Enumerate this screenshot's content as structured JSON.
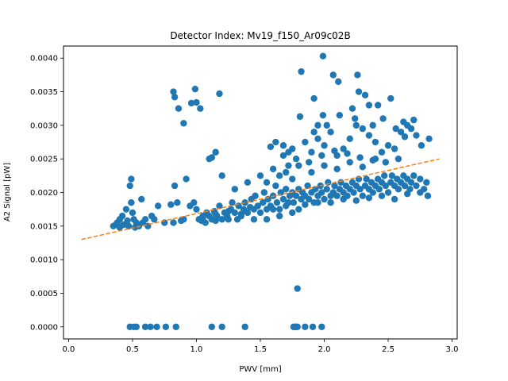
{
  "chart_data": {
    "type": "scatter",
    "title": "Detector Index: Mv19_f150_Ar09c02B",
    "xlabel": "PWV [mm]",
    "ylabel": "A2 Signal [pW]",
    "xlim": [
      -0.04,
      3.04
    ],
    "ylim": [
      -0.00018,
      0.00418
    ],
    "xticks": [
      0.0,
      0.5,
      1.0,
      1.5,
      2.0,
      2.5,
      3.0
    ],
    "xtick_labels": [
      "0.0",
      "0.5",
      "1.0",
      "1.5",
      "2.0",
      "2.5",
      "3.0"
    ],
    "yticks": [
      0.0,
      0.0005,
      0.001,
      0.0015,
      0.002,
      0.0025,
      0.003,
      0.0035,
      0.004
    ],
    "ytick_labels": [
      "0.0000",
      "0.0005",
      "0.0010",
      "0.0015",
      "0.0020",
      "0.0025",
      "0.0030",
      "0.0035",
      "0.0040"
    ],
    "grid": false,
    "legend": "none",
    "colors": {
      "points": "#1f77b4",
      "fit": "#ff7f0e"
    },
    "fit_line": {
      "x": [
        0.1,
        2.9
      ],
      "y": [
        0.0013,
        0.0025
      ],
      "style": "dashed"
    },
    "points": [
      [
        0.35,
        0.0015
      ],
      [
        0.37,
        0.00152
      ],
      [
        0.38,
        0.00155
      ],
      [
        0.4,
        0.0016
      ],
      [
        0.4,
        0.00148
      ],
      [
        0.42,
        0.00165
      ],
      [
        0.43,
        0.00152
      ],
      [
        0.45,
        0.00175
      ],
      [
        0.46,
        0.00158
      ],
      [
        0.47,
        0.0015
      ],
      [
        0.48,
        0.0021
      ],
      [
        0.49,
        0.0022
      ],
      [
        0.49,
        0.00185
      ],
      [
        0.5,
        0.0017
      ],
      [
        0.51,
        0.0016
      ],
      [
        0.52,
        0.00148
      ],
      [
        0.53,
        0.00155
      ],
      [
        0.55,
        0.0015
      ],
      [
        0.57,
        0.0019
      ],
      [
        0.58,
        0.00155
      ],
      [
        0.6,
        0.0016
      ],
      [
        0.62,
        0.0015
      ],
      [
        0.65,
        0.00165
      ],
      [
        0.67,
        0.0016
      ],
      [
        0.7,
        0.0018
      ],
      [
        0.75,
        0.00155
      ],
      [
        0.8,
        0.00182
      ],
      [
        0.82,
        0.00155
      ],
      [
        0.83,
        0.0021
      ],
      [
        0.85,
        0.00185
      ],
      [
        0.88,
        0.00158
      ],
      [
        0.9,
        0.0016
      ],
      [
        0.92,
        0.0022
      ],
      [
        0.95,
        0.0018
      ],
      [
        0.98,
        0.00185
      ],
      [
        1.0,
        0.00175
      ],
      [
        1.02,
        0.0016
      ],
      [
        1.04,
        0.00158
      ],
      [
        1.05,
        0.00162
      ],
      [
        1.07,
        0.00155
      ],
      [
        1.08,
        0.0017
      ],
      [
        1.1,
        0.00165
      ],
      [
        1.12,
        0.0016
      ],
      [
        1.14,
        0.00172
      ],
      [
        1.15,
        0.00158
      ],
      [
        1.16,
        0.00165
      ],
      [
        1.18,
        0.0018
      ],
      [
        1.2,
        0.0016
      ],
      [
        1.22,
        0.0017
      ],
      [
        1.24,
        0.00165
      ],
      [
        1.25,
        0.0016
      ],
      [
        1.27,
        0.00175
      ],
      [
        1.28,
        0.00185
      ],
      [
        1.3,
        0.0017
      ],
      [
        1.32,
        0.0016
      ],
      [
        1.33,
        0.0018
      ],
      [
        1.35,
        0.00168
      ],
      [
        1.37,
        0.00175
      ],
      [
        1.38,
        0.00185
      ],
      [
        1.4,
        0.0017
      ],
      [
        1.42,
        0.00178
      ],
      [
        1.43,
        0.0019
      ],
      [
        1.45,
        0.00175
      ],
      [
        1.46,
        0.00195
      ],
      [
        1.48,
        0.0018
      ],
      [
        1.5,
        0.0017
      ],
      [
        1.52,
        0.00185
      ],
      [
        1.53,
        0.002
      ],
      [
        1.55,
        0.00175
      ],
      [
        1.56,
        0.0019
      ],
      [
        1.58,
        0.0018
      ],
      [
        1.6,
        0.00195
      ],
      [
        1.62,
        0.0021
      ],
      [
        1.63,
        0.00185
      ],
      [
        1.65,
        0.00175
      ],
      [
        1.66,
        0.002
      ],
      [
        1.68,
        0.0019
      ],
      [
        1.7,
        0.00205
      ],
      [
        1.72,
        0.00185
      ],
      [
        1.73,
        0.00195
      ],
      [
        1.75,
        0.002
      ],
      [
        1.76,
        0.00185
      ],
      [
        1.78,
        0.00195
      ],
      [
        1.8,
        0.00205
      ],
      [
        1.82,
        0.0019
      ],
      [
        1.83,
        0.002
      ],
      [
        1.85,
        0.00195
      ],
      [
        1.87,
        0.0021
      ],
      [
        1.88,
        0.0019
      ],
      [
        1.9,
        0.002
      ],
      [
        1.92,
        0.00185
      ],
      [
        1.93,
        0.00205
      ],
      [
        1.95,
        0.00195
      ],
      [
        1.97,
        0.0021
      ],
      [
        1.98,
        0.002
      ],
      [
        2.0,
        0.0019
      ],
      [
        2.02,
        0.00205
      ],
      [
        2.03,
        0.00215
      ],
      [
        2.05,
        0.00195
      ],
      [
        2.07,
        0.002
      ],
      [
        2.08,
        0.0021
      ],
      [
        2.1,
        0.00195
      ],
      [
        2.12,
        0.00205
      ],
      [
        2.13,
        0.00215
      ],
      [
        2.15,
        0.002
      ],
      [
        2.17,
        0.0021
      ],
      [
        2.18,
        0.00195
      ],
      [
        2.2,
        0.00205
      ],
      [
        2.22,
        0.00215
      ],
      [
        2.23,
        0.002
      ],
      [
        2.25,
        0.0021
      ],
      [
        2.27,
        0.0022
      ],
      [
        2.28,
        0.00205
      ],
      [
        2.3,
        0.00195
      ],
      [
        2.32,
        0.0021
      ],
      [
        2.33,
        0.0022
      ],
      [
        2.35,
        0.00205
      ],
      [
        2.37,
        0.00215
      ],
      [
        2.38,
        0.002
      ],
      [
        2.4,
        0.0021
      ],
      [
        2.42,
        0.0022
      ],
      [
        2.43,
        0.00205
      ],
      [
        2.45,
        0.00215
      ],
      [
        2.47,
        0.00225
      ],
      [
        2.48,
        0.0021
      ],
      [
        2.5,
        0.002
      ],
      [
        2.52,
        0.00215
      ],
      [
        2.53,
        0.00225
      ],
      [
        2.55,
        0.0021
      ],
      [
        2.57,
        0.0022
      ],
      [
        2.58,
        0.00205
      ],
      [
        2.6,
        0.00215
      ],
      [
        2.62,
        0.00225
      ],
      [
        2.63,
        0.0021
      ],
      [
        2.65,
        0.0022
      ],
      [
        2.67,
        0.00205
      ],
      [
        2.68,
        0.00215
      ],
      [
        2.7,
        0.00225
      ],
      [
        2.72,
        0.0021
      ],
      [
        2.75,
        0.0022
      ],
      [
        2.78,
        0.00205
      ],
      [
        2.8,
        0.00215
      ],
      [
        2.81,
        0.00195
      ],
      [
        1.55,
        0.0016
      ],
      [
        1.6,
        0.00175
      ],
      [
        1.65,
        0.00165
      ],
      [
        1.7,
        0.0018
      ],
      [
        1.75,
        0.0017
      ],
      [
        1.8,
        0.00175
      ],
      [
        1.45,
        0.0016
      ],
      [
        1.35,
        0.00165
      ],
      [
        1.25,
        0.00172
      ],
      [
        1.15,
        0.00168
      ],
      [
        1.05,
        0.00165
      ],
      [
        2.05,
        0.00185
      ],
      [
        2.15,
        0.0019
      ],
      [
        2.25,
        0.00188
      ],
      [
        2.35,
        0.00192
      ],
      [
        2.45,
        0.00195
      ],
      [
        2.55,
        0.0019
      ],
      [
        2.65,
        0.00198
      ],
      [
        2.75,
        0.002
      ],
      [
        1.95,
        0.00185
      ],
      [
        1.85,
        0.00182
      ],
      [
        1.9,
        0.0023
      ],
      [
        2.0,
        0.0024
      ],
      [
        2.1,
        0.00235
      ],
      [
        2.2,
        0.00245
      ],
      [
        2.3,
        0.00238
      ],
      [
        2.4,
        0.0025
      ],
      [
        1.7,
        0.0023
      ],
      [
        1.75,
        0.0022
      ],
      [
        1.8,
        0.0024
      ],
      [
        1.65,
        0.00225
      ],
      [
        1.6,
        0.00235
      ],
      [
        1.55,
        0.00215
      ],
      [
        1.5,
        0.00225
      ],
      [
        1.4,
        0.00215
      ],
      [
        1.3,
        0.00205
      ],
      [
        1.2,
        0.00225
      ],
      [
        1.9,
        0.0026
      ],
      [
        1.95,
        0.0028
      ],
      [
        2.0,
        0.0027
      ],
      [
        2.05,
        0.0029
      ],
      [
        2.1,
        0.00255
      ],
      [
        2.15,
        0.00265
      ],
      [
        2.2,
        0.0028
      ],
      [
        2.25,
        0.003
      ],
      [
        2.3,
        0.00295
      ],
      [
        2.35,
        0.00285
      ],
      [
        2.4,
        0.00275
      ],
      [
        2.45,
        0.0026
      ],
      [
        2.5,
        0.0027
      ],
      [
        2.55,
        0.00265
      ],
      [
        2.6,
        0.0029
      ],
      [
        2.62,
        0.00305
      ],
      [
        2.65,
        0.003
      ],
      [
        2.68,
        0.00295
      ],
      [
        2.7,
        0.00308
      ],
      [
        2.72,
        0.00285
      ],
      [
        2.76,
        0.0027
      ],
      [
        2.82,
        0.0028
      ],
      [
        2.58,
        0.0025
      ],
      [
        2.48,
        0.00245
      ],
      [
        2.38,
        0.00248
      ],
      [
        2.28,
        0.00252
      ],
      [
        2.18,
        0.00258
      ],
      [
        2.08,
        0.00262
      ],
      [
        1.98,
        0.00255
      ],
      [
        1.88,
        0.00245
      ],
      [
        1.78,
        0.0025
      ],
      [
        1.72,
        0.0026
      ],
      [
        1.68,
        0.00255
      ],
      [
        1.62,
        0.00275
      ],
      [
        1.58,
        0.00268
      ],
      [
        1.75,
        0.00265
      ],
      [
        1.85,
        0.00275
      ],
      [
        1.92,
        0.0029
      ],
      [
        2.02,
        0.003
      ],
      [
        2.12,
        0.00315
      ],
      [
        2.22,
        0.00325
      ],
      [
        2.27,
        0.0035
      ],
      [
        2.32,
        0.00345
      ],
      [
        2.42,
        0.0033
      ],
      [
        2.52,
        0.0034
      ],
      [
        2.26,
        0.00375
      ],
      [
        2.11,
        0.00365
      ],
      [
        2.07,
        0.00375
      ],
      [
        1.99,
        0.00403
      ],
      [
        1.82,
        0.0038
      ],
      [
        1.81,
        0.00313
      ],
      [
        1.99,
        0.00315
      ],
      [
        1.95,
        0.003
      ],
      [
        1.92,
        0.0034
      ],
      [
        2.35,
        0.0033
      ],
      [
        2.24,
        0.0031
      ],
      [
        2.38,
        0.003
      ],
      [
        2.46,
        0.0031
      ],
      [
        2.56,
        0.00295
      ],
      [
        2.63,
        0.00283
      ],
      [
        1.12,
        0.00252
      ],
      [
        1.15,
        0.0026
      ],
      [
        1.1,
        0.0025
      ],
      [
        1.68,
        0.0027
      ],
      [
        1.72,
        0.0024
      ],
      [
        0.82,
        0.0035
      ],
      [
        0.83,
        0.00342
      ],
      [
        0.86,
        0.00325
      ],
      [
        0.9,
        0.00303
      ],
      [
        0.96,
        0.00333
      ],
      [
        0.99,
        0.00354
      ],
      [
        1.0,
        0.00334
      ],
      [
        1.03,
        0.00325
      ],
      [
        1.18,
        0.00347
      ],
      [
        0.48,
        0.0
      ],
      [
        0.51,
        0.0
      ],
      [
        0.53,
        0.0
      ],
      [
        0.6,
        0.0
      ],
      [
        0.64,
        0.0
      ],
      [
        0.69,
        0.0
      ],
      [
        0.76,
        0.0
      ],
      [
        0.84,
        0.0
      ],
      [
        1.12,
        0.0
      ],
      [
        1.2,
        0.0
      ],
      [
        1.38,
        0.0
      ],
      [
        1.76,
        0.0
      ],
      [
        1.77,
        0.0
      ],
      [
        1.78,
        0.0
      ],
      [
        1.79,
        0.0
      ],
      [
        1.85,
        0.0
      ],
      [
        1.91,
        0.0
      ],
      [
        1.98,
        0.0
      ],
      [
        1.79,
        0.00057
      ]
    ]
  }
}
